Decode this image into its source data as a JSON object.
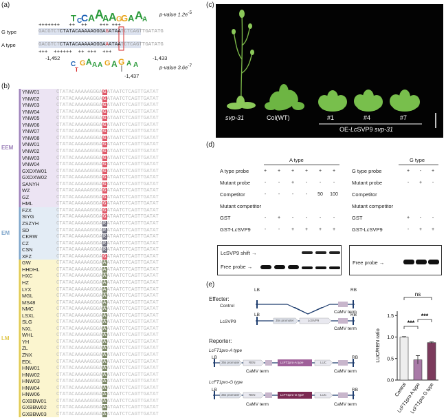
{
  "panel_a": {
    "label": "(a)",
    "pvalue_top": "p-value 1.2e",
    "pvalue_top_exp": "-5",
    "pvalue_bottom": "p-value 3.6e",
    "pvalue_bottom_exp": "-7",
    "plus_top": "+++++++   ++  ++    +++ +++",
    "plus_bottom": "+++  ++++++  ++ +++  +++",
    "g_label": "G type",
    "a_label": "A type",
    "g_seq_left": "GACGTCT",
    "g_seq_mid": "CTATACAAAAAGGGA",
    "g_seq_snp": "G",
    "g_seq_mid2": "ATAA",
    "g_seq_right": "TCTCAGTTGATATG",
    "a_seq_left": "GACGTCT",
    "a_seq_mid": "CTATACAAAAAGGGA",
    "a_seq_snp": "A",
    "a_seq_mid2": "ATAA",
    "a_seq_right": "TCTCAGTTGATATG",
    "pos_left": "-1,452",
    "pos_right": "-1,433",
    "pos_snp": "-1,437"
  },
  "panel_b": {
    "label": "(b)",
    "groups": [
      {
        "name": "EEM",
        "color": "#9b7fb8"
      },
      {
        "name": "EM",
        "color": "#7ba3c9"
      },
      {
        "name": "LM",
        "color": "#e0c84f"
      }
    ],
    "seq_left": "CTATACAAAAAGGGA",
    "seq_right": "ATAATCTCAGTTGATAT",
    "strains": [
      {
        "name": "YNW01",
        "g": "EEM",
        "b": "G"
      },
      {
        "name": "YNW02",
        "g": "EEM",
        "b": "G"
      },
      {
        "name": "YNW03",
        "g": "EEM",
        "b": "G"
      },
      {
        "name": "YNW04",
        "g": "EEM",
        "b": "G"
      },
      {
        "name": "YNW05",
        "g": "EEM",
        "b": "G"
      },
      {
        "name": "YNW06",
        "g": "EEM",
        "b": "G"
      },
      {
        "name": "YNW07",
        "g": "EEM",
        "b": "G"
      },
      {
        "name": "YNW08",
        "g": "EEM",
        "b": "G"
      },
      {
        "name": "VNW01",
        "g": "EEM",
        "b": "G"
      },
      {
        "name": "VNW02",
        "g": "EEM",
        "b": "G"
      },
      {
        "name": "VNW03",
        "g": "EEM",
        "b": "G"
      },
      {
        "name": "VNW04",
        "g": "EEM",
        "b": "G"
      },
      {
        "name": "GXDXW01",
        "g": "EEM",
        "b": "G"
      },
      {
        "name": "GXDXW02",
        "g": "EEM",
        "b": "G"
      },
      {
        "name": "SANYH",
        "g": "EEM",
        "b": "G"
      },
      {
        "name": "WZ",
        "g": "EEM",
        "b": "G"
      },
      {
        "name": "GZ",
        "g": "EEM",
        "b": "G"
      },
      {
        "name": "HML",
        "g": "EEM",
        "b": "G"
      },
      {
        "name": "FZX",
        "g": "EM",
        "b": "G"
      },
      {
        "name": "SIYG",
        "g": "EM",
        "b": "G"
      },
      {
        "name": "ZSZYH",
        "g": "EM",
        "b": "R"
      },
      {
        "name": "SD",
        "g": "EM",
        "b": "R"
      },
      {
        "name": "CKRW",
        "g": "EM",
        "b": "R"
      },
      {
        "name": "CZ",
        "g": "EM",
        "b": "R"
      },
      {
        "name": "CSN",
        "g": "EM",
        "b": "R"
      },
      {
        "name": "XFZ",
        "g": "EM",
        "b": "G"
      },
      {
        "name": "GW",
        "g": "LM",
        "b": "A"
      },
      {
        "name": "HHDHL",
        "g": "LM",
        "b": "A"
      },
      {
        "name": "HXC",
        "g": "LM",
        "b": "A"
      },
      {
        "name": "HZ",
        "g": "LM",
        "b": "A"
      },
      {
        "name": "LYX",
        "g": "LM",
        "b": "A"
      },
      {
        "name": "MGL",
        "g": "LM",
        "b": "A"
      },
      {
        "name": "MS48",
        "g": "LM",
        "b": "A"
      },
      {
        "name": "NMC",
        "g": "LM",
        "b": "A"
      },
      {
        "name": "LSXL",
        "g": "LM",
        "b": "A"
      },
      {
        "name": "SLG",
        "g": "LM",
        "b": "A"
      },
      {
        "name": "NXL",
        "g": "LM",
        "b": "A"
      },
      {
        "name": "WHL",
        "g": "LM",
        "b": "A"
      },
      {
        "name": "YH",
        "g": "LM",
        "b": "A"
      },
      {
        "name": "ZL",
        "g": "LM",
        "b": "A"
      },
      {
        "name": "ZNX",
        "g": "LM",
        "b": "A"
      },
      {
        "name": "EDL",
        "g": "LM",
        "b": "A"
      },
      {
        "name": "HNW01",
        "g": "LM",
        "b": "A"
      },
      {
        "name": "HNW02",
        "g": "LM",
        "b": "A"
      },
      {
        "name": "HNW03",
        "g": "LM",
        "b": "A"
      },
      {
        "name": "HNW04",
        "g": "LM",
        "b": "A"
      },
      {
        "name": "HNW06",
        "g": "LM",
        "b": "A"
      },
      {
        "name": "GXBBW01",
        "g": "LM",
        "b": "A"
      },
      {
        "name": "GXBBW02",
        "g": "LM",
        "b": "A"
      },
      {
        "name": "GXBBW03",
        "g": "LM",
        "b": "A"
      }
    ]
  },
  "panel_c": {
    "label": "(c)",
    "svp": "svp-31",
    "col": "Col(WT)",
    "lines": [
      "#1",
      "#4",
      "#7"
    ],
    "oe_prefix": "OE-",
    "oe_italic": "Lc",
    "oe_mid": "SVP9 ",
    "oe_suffix": "svp-31"
  },
  "panel_d": {
    "label": "(d)",
    "a_title": "A type",
    "g_title": "G type",
    "a_rows": [
      {
        "label": "A type probe",
        "v": [
          "+",
          "+",
          "+",
          "+",
          "+",
          "+"
        ]
      },
      {
        "label": "Mutant probe",
        "v": [
          "-",
          "-",
          "+",
          "-",
          "-",
          "-"
        ]
      },
      {
        "label": "Competitor",
        "v": [
          "-",
          "-",
          "-",
          "-",
          "50",
          "100"
        ]
      },
      {
        "label": "Mutant competitor",
        "v": [
          "",
          "",
          "",
          "",
          "",
          ""
        ]
      },
      {
        "label": "GST",
        "v": [
          "-",
          "+",
          "-",
          "-",
          "-",
          "-"
        ]
      },
      {
        "label": "GST-LcSVP9",
        "v": [
          "-",
          "-",
          "+",
          "+",
          "+",
          "+"
        ]
      }
    ],
    "g_rows": [
      {
        "label": "G type probe",
        "v": [
          "+",
          "-",
          "+"
        ]
      },
      {
        "label": "Mutant probe",
        "v": [
          "-",
          "+",
          "-"
        ]
      },
      {
        "label": "Competitor",
        "v": [
          "",
          "",
          ""
        ]
      },
      {
        "label": "Mutant competitor",
        "v": [
          "",
          "",
          ""
        ]
      },
      {
        "label": "GST",
        "v": [
          "+",
          "-",
          "-"
        ]
      },
      {
        "label": "GST-LcSVP9",
        "v": [
          "-",
          "+",
          "+"
        ]
      }
    ],
    "shift_label": "LcSVP9 shift",
    "free_label": "Free probe",
    "free_label_g": "Free probe"
  },
  "panel_e": {
    "label": "(e)",
    "effecter": "Effecter:",
    "reporter": "Reporter:",
    "control": "Control",
    "lcsvp9": "LcSVP9",
    "lb": "LB",
    "rb": "RB",
    "camv": "CaMV term",
    "p35s": "35s promoter",
    "rep_a_title": "LcFT1pro-A type",
    "rep_g_title": "LcFT1pro-G type",
    "ren": "REN",
    "luc": "LUC",
    "ft1a": "LcFT1pro-A type",
    "ft1g": "LcFT1pro-G type"
  },
  "chart_data": {
    "type": "bar",
    "categories": [
      "Control",
      "LcFT1pro A type",
      "LcFT1pro G type"
    ],
    "values": [
      1.0,
      0.47,
      0.87
    ],
    "errors": [
      0.01,
      0.1,
      0.02
    ],
    "ylabel": "LUC/REN ratio",
    "ylim": [
      0,
      1.6
    ],
    "yticks": [
      "0.0",
      "0.5",
      "1.0",
      "1.5"
    ],
    "colors": [
      "#eeeeee",
      "#a97aa8",
      "#7b3a5c"
    ],
    "sig": [
      "ns",
      "***",
      "***"
    ]
  }
}
